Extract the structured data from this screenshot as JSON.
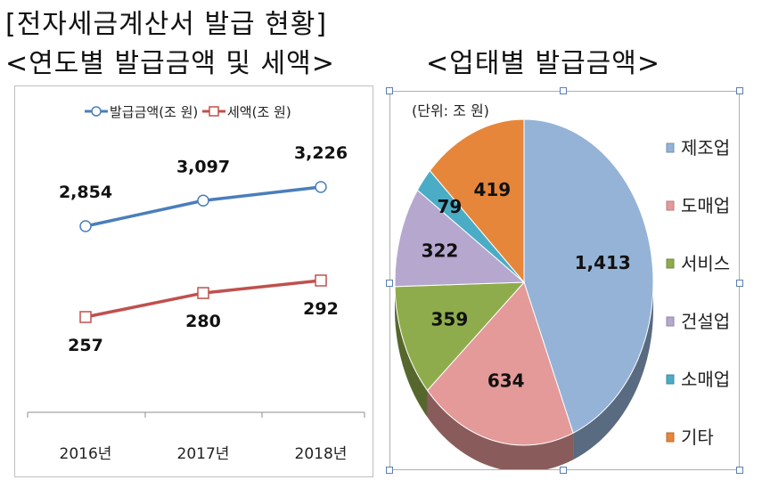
{
  "page_title": "[전자세금계산서 발급 현황]",
  "left_heading": "<연도별 발급금액 및 세액>",
  "right_heading": "<업태별 발급금액>",
  "chart_data": [
    {
      "type": "line",
      "title": "",
      "categories": [
        "2016년",
        "2017년",
        "2018년"
      ],
      "series": [
        {
          "name": "발급금액(조 원)",
          "values": [
            2854,
            3097,
            3226
          ],
          "labels": [
            "2,854",
            "3,097",
            "3,226"
          ],
          "color": "#4a7ebb"
        },
        {
          "name": "세액(조 원)",
          "values": [
            257,
            280,
            292
          ],
          "labels": [
            "257",
            "280",
            "292"
          ],
          "color": "#c0504d"
        }
      ],
      "legend_position": "top"
    },
    {
      "type": "pie",
      "unit_note": "(단위: 조 원)",
      "slices": [
        {
          "label": "제조업",
          "value": 1413,
          "display": "1,413",
          "color": "#95b3d7"
        },
        {
          "label": "도매업",
          "value": 634,
          "display": "634",
          "color": "#e49a98"
        },
        {
          "label": "서비스",
          "value": 359,
          "display": "359",
          "color": "#8fac4c"
        },
        {
          "label": "건설업",
          "value": 322,
          "display": "322",
          "color": "#b6a7cf"
        },
        {
          "label": "소매업",
          "value": 79,
          "display": "79",
          "color": "#4bacc6"
        },
        {
          "label": "기타",
          "value": 419,
          "display": "419",
          "color": "#e6863a"
        }
      ],
      "legend_position": "right"
    }
  ]
}
